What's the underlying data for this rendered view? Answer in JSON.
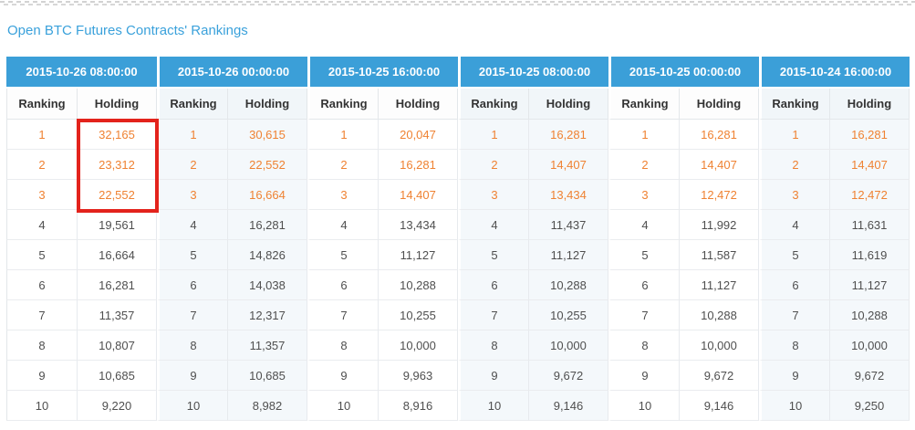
{
  "page_title": "Open BTC Futures Contracts' Rankings",
  "table": {
    "sub_headers": [
      "Ranking",
      "Holding"
    ],
    "groups": [
      {
        "timestamp": "2015-10-26 08:00:00",
        "rows": [
          {
            "ranking": "1",
            "holding": "32,165"
          },
          {
            "ranking": "2",
            "holding": "23,312"
          },
          {
            "ranking": "3",
            "holding": "22,552"
          },
          {
            "ranking": "4",
            "holding": "19,561"
          },
          {
            "ranking": "5",
            "holding": "16,664"
          },
          {
            "ranking": "6",
            "holding": "16,281"
          },
          {
            "ranking": "7",
            "holding": "11,357"
          },
          {
            "ranking": "8",
            "holding": "10,807"
          },
          {
            "ranking": "9",
            "holding": "10,685"
          },
          {
            "ranking": "10",
            "holding": "9,220"
          }
        ]
      },
      {
        "timestamp": "2015-10-26 00:00:00",
        "rows": [
          {
            "ranking": "1",
            "holding": "30,615"
          },
          {
            "ranking": "2",
            "holding": "22,552"
          },
          {
            "ranking": "3",
            "holding": "16,664"
          },
          {
            "ranking": "4",
            "holding": "16,281"
          },
          {
            "ranking": "5",
            "holding": "14,826"
          },
          {
            "ranking": "6",
            "holding": "14,038"
          },
          {
            "ranking": "7",
            "holding": "12,317"
          },
          {
            "ranking": "8",
            "holding": "11,357"
          },
          {
            "ranking": "9",
            "holding": "10,685"
          },
          {
            "ranking": "10",
            "holding": "8,982"
          }
        ]
      },
      {
        "timestamp": "2015-10-25 16:00:00",
        "rows": [
          {
            "ranking": "1",
            "holding": "20,047"
          },
          {
            "ranking": "2",
            "holding": "16,281"
          },
          {
            "ranking": "3",
            "holding": "14,407"
          },
          {
            "ranking": "4",
            "holding": "13,434"
          },
          {
            "ranking": "5",
            "holding": "11,127"
          },
          {
            "ranking": "6",
            "holding": "10,288"
          },
          {
            "ranking": "7",
            "holding": "10,255"
          },
          {
            "ranking": "8",
            "holding": "10,000"
          },
          {
            "ranking": "9",
            "holding": "9,963"
          },
          {
            "ranking": "10",
            "holding": "8,916"
          }
        ]
      },
      {
        "timestamp": "2015-10-25 08:00:00",
        "rows": [
          {
            "ranking": "1",
            "holding": "16,281"
          },
          {
            "ranking": "2",
            "holding": "14,407"
          },
          {
            "ranking": "3",
            "holding": "13,434"
          },
          {
            "ranking": "4",
            "holding": "11,437"
          },
          {
            "ranking": "5",
            "holding": "11,127"
          },
          {
            "ranking": "6",
            "holding": "10,288"
          },
          {
            "ranking": "7",
            "holding": "10,255"
          },
          {
            "ranking": "8",
            "holding": "10,000"
          },
          {
            "ranking": "9",
            "holding": "9,672"
          },
          {
            "ranking": "10",
            "holding": "9,146"
          }
        ]
      },
      {
        "timestamp": "2015-10-25 00:00:00",
        "rows": [
          {
            "ranking": "1",
            "holding": "16,281"
          },
          {
            "ranking": "2",
            "holding": "14,407"
          },
          {
            "ranking": "3",
            "holding": "12,472"
          },
          {
            "ranking": "4",
            "holding": "11,992"
          },
          {
            "ranking": "5",
            "holding": "11,587"
          },
          {
            "ranking": "6",
            "holding": "11,127"
          },
          {
            "ranking": "7",
            "holding": "10,288"
          },
          {
            "ranking": "8",
            "holding": "10,000"
          },
          {
            "ranking": "9",
            "holding": "9,672"
          },
          {
            "ranking": "10",
            "holding": "9,146"
          }
        ]
      },
      {
        "timestamp": "2015-10-24 16:00:00",
        "rows": [
          {
            "ranking": "1",
            "holding": "16,281"
          },
          {
            "ranking": "2",
            "holding": "14,407"
          },
          {
            "ranking": "3",
            "holding": "12,472"
          },
          {
            "ranking": "4",
            "holding": "11,631"
          },
          {
            "ranking": "5",
            "holding": "11,619"
          },
          {
            "ranking": "6",
            "holding": "11,127"
          },
          {
            "ranking": "7",
            "holding": "10,288"
          },
          {
            "ranking": "8",
            "holding": "10,000"
          },
          {
            "ranking": "9",
            "holding": "9,672"
          },
          {
            "ranking": "10",
            "holding": "9,250"
          }
        ]
      }
    ],
    "top_rows_highlighted": 3
  },
  "colors": {
    "header_blue": "#3b9fd8",
    "title_blue": "#3aa1db",
    "top3_orange": "#ef8232",
    "highlight_red": "#e3231c",
    "column_tint": "#f4f8fb"
  }
}
